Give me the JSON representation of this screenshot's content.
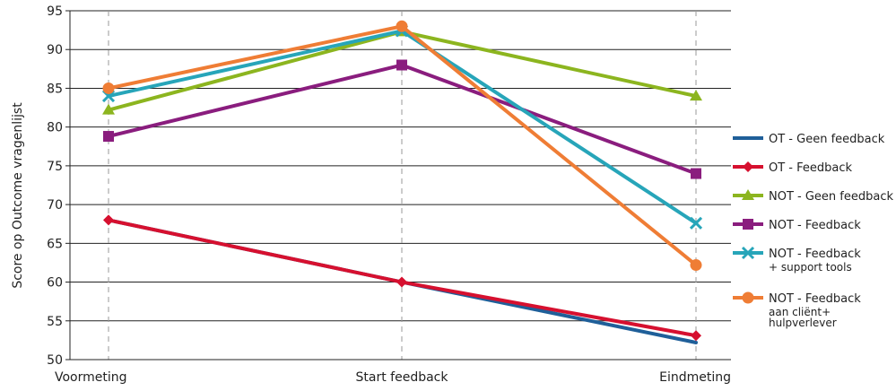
{
  "chart_data": {
    "type": "line",
    "title": "",
    "xlabel": "",
    "ylabel": "Score op Outcome vragenlijst",
    "categories": [
      "Voormeting",
      "Start feedback",
      "Eindmeting"
    ],
    "ylim": [
      50,
      95
    ],
    "yticks": [
      50,
      55,
      60,
      65,
      70,
      75,
      80,
      85,
      90,
      95
    ],
    "grid": "horizontal",
    "legend_position": "right",
    "series": [
      {
        "name": "OT - Geen feedback",
        "values": [
          68,
          60,
          52.2
        ],
        "color": "#1f5f99",
        "marker": "none"
      },
      {
        "name": "OT - Feedback",
        "values": [
          68,
          60,
          53.1
        ],
        "color": "#d6102f",
        "marker": "diamond"
      },
      {
        "name": "NOT - Geen feedback",
        "values": [
          82.2,
          92.3,
          84
        ],
        "color": "#8cb51f",
        "marker": "triangle"
      },
      {
        "name": "NOT - Feedback",
        "values": [
          78.8,
          88,
          74
        ],
        "color": "#8a1d7e",
        "marker": "square"
      },
      {
        "name": "NOT - Feedback\n+ support tools",
        "values": [
          84,
          92.4,
          67.6
        ],
        "color": "#27a5b9",
        "marker": "x"
      },
      {
        "name": "NOT - Feedback\naan cliënt+\nhulpverlever",
        "values": [
          85,
          93,
          62.2
        ],
        "color": "#ef7d35",
        "marker": "circle"
      }
    ]
  }
}
